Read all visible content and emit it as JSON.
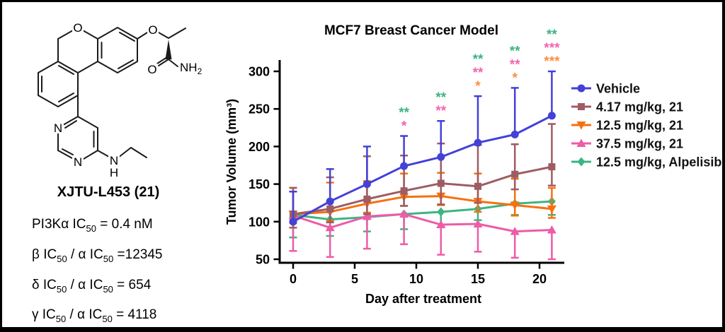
{
  "left_panel": {
    "compound_name": "XJTU-L453 (21)",
    "structure_labels": {
      "pyran_o": "O",
      "ether_o": "O",
      "carbonyl_o": "O",
      "amide_n": "NH",
      "amide_sub": "2",
      "pyrimidine_n1": "N",
      "pyrimidine_n2": "N",
      "amine_n": "N",
      "amine_h": "H"
    },
    "potency_lines": [
      {
        "segments": [
          {
            "t": "PI3Kα IC"
          },
          {
            "t": "50",
            "sub": true
          },
          {
            "t": " = 0.4 nM"
          }
        ]
      },
      {
        "segments": [
          {
            "t": "β IC"
          },
          {
            "t": "50",
            "sub": true
          },
          {
            "t": " / α IC"
          },
          {
            "t": "50",
            "sub": true
          },
          {
            "t": " =12345"
          }
        ]
      },
      {
        "segments": [
          {
            "t": "δ IC"
          },
          {
            "t": "50",
            "sub": true
          },
          {
            "t": " / α IC"
          },
          {
            "t": "50",
            "sub": true
          },
          {
            "t": " = 654"
          }
        ]
      },
      {
        "segments": [
          {
            "t": "γ IC"
          },
          {
            "t": "50",
            "sub": true
          },
          {
            "t": " / α IC"
          },
          {
            "t": "50",
            "sub": true
          },
          {
            "t": " = 4118"
          }
        ]
      }
    ]
  },
  "chart_data": {
    "type": "line",
    "title": "MCF7 Breast Cancer Model",
    "xlabel": "Day after treatment",
    "ylabel": "Tumor Volume (mm³)",
    "x": [
      0,
      3,
      6,
      9,
      12,
      15,
      18,
      21
    ],
    "xticks": [
      0,
      5,
      10,
      15,
      20
    ],
    "yticks": [
      50,
      100,
      150,
      200,
      250,
      300
    ],
    "ylim": [
      50,
      310
    ],
    "grid": false,
    "legend_position": "right",
    "series": [
      {
        "name": "Vehicle",
        "color": "#4341d8",
        "marker": "circle",
        "values": [
          100,
          127,
          150,
          174,
          186,
          205,
          216,
          241
        ],
        "err_up": [
          40,
          43,
          50,
          40,
          48,
          62,
          62,
          59
        ],
        "err_down": [
          0,
          0,
          0,
          0,
          0,
          0,
          0,
          0
        ]
      },
      {
        "name": "4.17 mg/kg, 21",
        "color": "#9e5c63",
        "marker": "square",
        "values": [
          110,
          117,
          130,
          141,
          151,
          147,
          163,
          173
        ],
        "err_up": [
          35,
          42,
          57,
          47,
          53,
          55,
          40,
          57
        ],
        "err_down": [
          18,
          18,
          20,
          20,
          28,
          22,
          20,
          25
        ]
      },
      {
        "name": "12.5 mg/kg, 21",
        "color": "#f7700f",
        "marker": "triangle-down",
        "values": [
          110,
          113,
          124,
          133,
          134,
          127,
          122,
          117
        ],
        "err_up": [
          35,
          39,
          30,
          31,
          31,
          37,
          35,
          28
        ],
        "err_down": [
          12,
          12,
          12,
          12,
          12,
          14,
          14,
          12
        ]
      },
      {
        "name": "37.5 mg/kg, 21",
        "color": "#ee5ba7",
        "marker": "triangle-up",
        "values": [
          108,
          92,
          107,
          110,
          96,
          97,
          87,
          89
        ],
        "err_up": [
          0,
          0,
          0,
          0,
          0,
          0,
          0,
          0
        ],
        "err_down": [
          47,
          39,
          43,
          40,
          40,
          37,
          35,
          39
        ]
      },
      {
        "name": "12.5 mg/kg, Alpelisib",
        "color": "#3db483",
        "marker": "diamond",
        "values": [
          109,
          103,
          106,
          110,
          113,
          117,
          124,
          127
        ],
        "err_up": [
          0,
          0,
          0,
          0,
          0,
          0,
          0,
          0
        ],
        "err_down": [
          30,
          22,
          19,
          20,
          20,
          15,
          15,
          18
        ]
      }
    ],
    "significance": [
      {
        "day": 9,
        "stars": [
          {
            "text": "*",
            "color": "#f266ae"
          },
          {
            "text": "**",
            "color": "#3db483"
          }
        ]
      },
      {
        "day": 12,
        "stars": [
          {
            "text": "**",
            "color": "#f266ae"
          },
          {
            "text": "**",
            "color": "#3db483"
          }
        ]
      },
      {
        "day": 15,
        "stars": [
          {
            "text": "*",
            "color": "#f99046"
          },
          {
            "text": "**",
            "color": "#f266ae"
          },
          {
            "text": "**",
            "color": "#3db483"
          }
        ]
      },
      {
        "day": 18,
        "stars": [
          {
            "text": "*",
            "color": "#f99046"
          },
          {
            "text": "**",
            "color": "#f266ae"
          },
          {
            "text": "**",
            "color": "#3db483"
          }
        ]
      },
      {
        "day": 21,
        "stars": [
          {
            "text": "***",
            "color": "#f99046"
          },
          {
            "text": "***",
            "color": "#f266ae"
          },
          {
            "text": "**",
            "color": "#3db483"
          }
        ]
      }
    ]
  }
}
